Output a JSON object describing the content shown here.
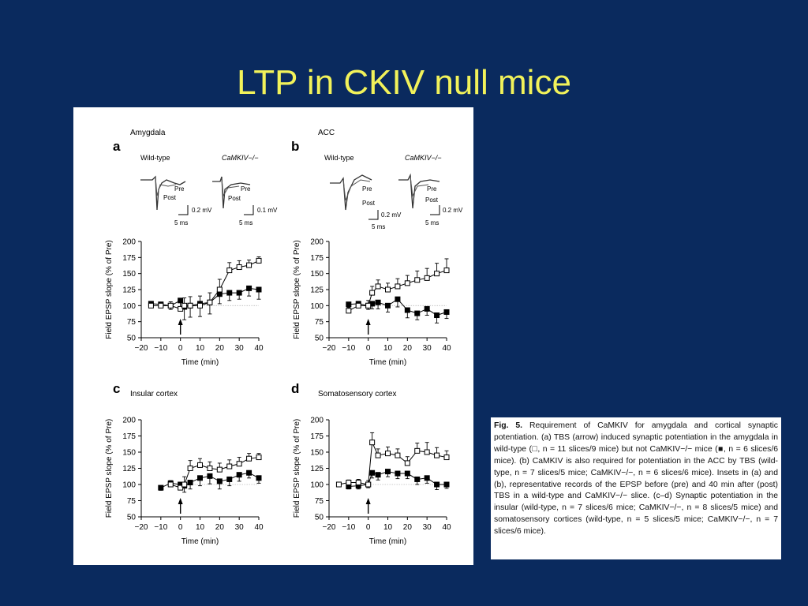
{
  "slide": {
    "title": "LTP in CKIV null mice"
  },
  "caption": {
    "label": "Fig. 5.",
    "text": "Requirement of CaMKIV for amygdala and cortical synaptic potentiation. (a) TBS (arrow) induced synaptic potentiation in the amygdala in wild-type (□, n = 11 slices/9 mice) but not CaMKIV−/− mice (■, n = 6 slices/6 mice). (b) CaMKIV is also required for potentiation in the ACC by TBS (wild-type, n = 7 slices/5 mice; CaMKIV−/−, n = 6 slices/6 mice). Insets in (a) and (b), representative records of the EPSP before (pre) and 40 min after (post) TBS in a wild-type and CaMKIV−/− slice. (c–d) Synaptic potentiation in the insular (wild-type, n = 7 slices/6 mice; CaMKIV−/−, n = 8 slices/5 mice) and somatosensory cortices (wild-type, n = 5 slices/5 mice; CaMKIV−/−, n = 7 slices/6 mice)."
  },
  "insets": {
    "wt": "Wild-type",
    "ko": "CaMKIV−/−",
    "pre": "Pre",
    "post": "Post",
    "ms": "5 ms",
    "mv02": "0.2 mV",
    "mv01": "0.1 mV"
  },
  "chart_data": [
    {
      "type": "scatter",
      "panel": "a",
      "subtitle": "Amygdala",
      "xlabel": "Time (min)",
      "ylabel": "Field EPSP slope (% of Pre)",
      "xlim": [
        -20,
        40
      ],
      "ylim": [
        50,
        200
      ],
      "xticks": [
        -20,
        -10,
        0,
        10,
        20,
        30,
        40
      ],
      "yticks": [
        50,
        75,
        100,
        125,
        150,
        175,
        200
      ],
      "series": [
        {
          "marker": "open",
          "x": [
            -15,
            -10,
            -5,
            0,
            2,
            5,
            10,
            15,
            20,
            25,
            30,
            35,
            40
          ],
          "y": [
            100,
            100,
            100,
            95,
            100,
            100,
            100,
            105,
            125,
            155,
            160,
            163,
            170
          ],
          "err": [
            5,
            5,
            6,
            10,
            12,
            14,
            15,
            15,
            16,
            12,
            10,
            8,
            6
          ]
        },
        {
          "marker": "filled",
          "x": [
            -15,
            -10,
            -5,
            0,
            2,
            5,
            10,
            15,
            20,
            25,
            30,
            35,
            40
          ],
          "y": [
            103,
            102,
            100,
            108,
            98,
            100,
            103,
            105,
            118,
            120,
            120,
            127,
            125
          ],
          "err": [
            4,
            5,
            6,
            15,
            20,
            18,
            20,
            18,
            15,
            12,
            10,
            12,
            15
          ]
        }
      ]
    },
    {
      "type": "scatter",
      "panel": "b",
      "subtitle": "ACC",
      "xlabel": "Time (min)",
      "ylabel": "Field EPSP slope (% of Pre)",
      "xlim": [
        -20,
        40
      ],
      "ylim": [
        50,
        200
      ],
      "xticks": [
        -20,
        -10,
        0,
        10,
        20,
        30,
        40
      ],
      "yticks": [
        50,
        75,
        100,
        125,
        150,
        175,
        200
      ],
      "series": [
        {
          "marker": "open",
          "x": [
            -10,
            -5,
            0,
            2,
            5,
            10,
            15,
            20,
            25,
            30,
            35,
            40
          ],
          "y": [
            92,
            100,
            100,
            120,
            130,
            125,
            130,
            135,
            140,
            143,
            150,
            155
          ],
          "err": [
            5,
            6,
            8,
            10,
            10,
            10,
            12,
            12,
            14,
            15,
            16,
            18
          ]
        },
        {
          "marker": "filled",
          "x": [
            -10,
            -5,
            0,
            2,
            5,
            10,
            15,
            20,
            25,
            30,
            35,
            40
          ],
          "y": [
            102,
            103,
            100,
            103,
            105,
            100,
            110,
            93,
            88,
            95,
            85,
            90
          ],
          "err": [
            4,
            5,
            6,
            8,
            10,
            10,
            12,
            12,
            10,
            10,
            12,
            10
          ]
        }
      ]
    },
    {
      "type": "scatter",
      "panel": "c",
      "subtitle": "Insular cortex",
      "xlabel": "Time (min)",
      "ylabel": "Field EPSP slope (% of Pre)",
      "xlim": [
        -20,
        40
      ],
      "ylim": [
        50,
        200
      ],
      "xticks": [
        -20,
        -10,
        0,
        10,
        20,
        30,
        40
      ],
      "yticks": [
        50,
        75,
        100,
        125,
        150,
        175,
        200
      ],
      "series": [
        {
          "marker": "open",
          "x": [
            -5,
            0,
            2,
            5,
            10,
            15,
            20,
            25,
            30,
            35,
            40
          ],
          "y": [
            100,
            95,
            100,
            125,
            130,
            125,
            123,
            128,
            132,
            140,
            142
          ],
          "err": [
            6,
            8,
            12,
            12,
            10,
            10,
            10,
            10,
            10,
            8,
            6
          ]
        },
        {
          "marker": "filled",
          "x": [
            -10,
            -5,
            0,
            2,
            5,
            10,
            15,
            20,
            25,
            30,
            35,
            40
          ],
          "y": [
            95,
            102,
            100,
            98,
            103,
            110,
            113,
            105,
            108,
            115,
            118,
            110
          ],
          "err": [
            4,
            5,
            6,
            10,
            10,
            12,
            12,
            12,
            10,
            10,
            8,
            8
          ]
        }
      ]
    },
    {
      "type": "scatter",
      "panel": "d",
      "subtitle": "Somatosensory cortex",
      "xlabel": "Time (min)",
      "ylabel": "Field EPSP slope (% of Pre)",
      "xlim": [
        -20,
        40
      ],
      "ylim": [
        50,
        200
      ],
      "xticks": [
        -20,
        -10,
        0,
        10,
        20,
        30,
        40
      ],
      "yticks": [
        50,
        75,
        100,
        125,
        150,
        175,
        200
      ],
      "series": [
        {
          "marker": "open",
          "x": [
            -15,
            -10,
            -5,
            0,
            2,
            5,
            10,
            15,
            20,
            25,
            30,
            35,
            40
          ],
          "y": [
            100,
            103,
            103,
            100,
            165,
            145,
            148,
            145,
            133,
            152,
            150,
            145,
            142
          ],
          "err": [
            3,
            4,
            5,
            6,
            15,
            10,
            10,
            10,
            10,
            12,
            15,
            12,
            10
          ]
        },
        {
          "marker": "filled",
          "x": [
            -10,
            -5,
            0,
            2,
            5,
            10,
            15,
            20,
            25,
            30,
            35,
            40
          ],
          "y": [
            97,
            98,
            100,
            118,
            115,
            120,
            117,
            117,
            108,
            110,
            100,
            100
          ],
          "err": [
            4,
            5,
            5,
            8,
            8,
            8,
            8,
            8,
            8,
            8,
            8,
            6
          ]
        }
      ]
    }
  ]
}
